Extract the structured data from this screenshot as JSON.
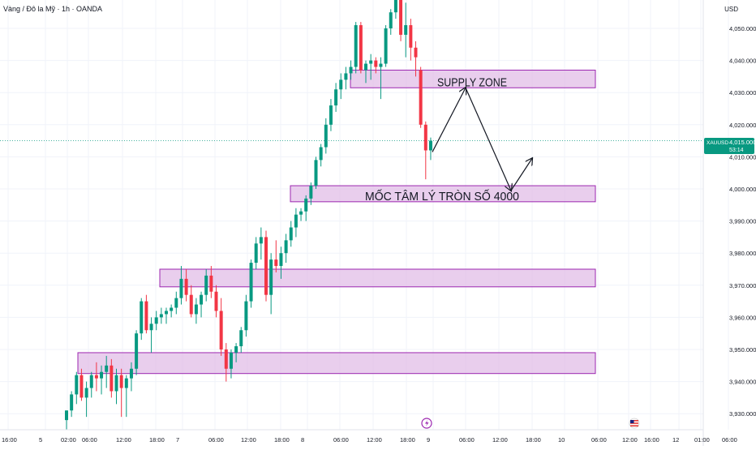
{
  "header": {
    "symbol_title": "Vàng / Đô la Mỹ · 1h · OANDA",
    "currency": "USD"
  },
  "price_tag": {
    "symbol": "XAUUSD",
    "price": "4,015.000",
    "countdown": "53:14",
    "color": "#089981"
  },
  "colors": {
    "up": "#089981",
    "down": "#f23645",
    "zone_fill": "#e1bee7",
    "zone_border": "#9c27b0",
    "grid": "#f0f3fa",
    "axis_text": "#131722"
  },
  "event_icons": [
    {
      "name": "lightning-icon",
      "time_label": "9"
    },
    {
      "name": "us-flag-icon",
      "time_label": "12:00"
    }
  ],
  "chart_data": {
    "type": "candlestick",
    "title": "",
    "xlabel": "",
    "ylabel": "",
    "ylim": [
      3926,
      4062
    ],
    "grid": true,
    "x_tick_labels": [
      "16:00",
      "5",
      "02:00",
      "06:00",
      "12:00",
      "18:00",
      "7",
      "06:00",
      "12:00",
      "18:00",
      "8",
      "06:00",
      "12:00",
      "18:00",
      "9",
      "06:00",
      "12:00",
      "18:00",
      "10",
      "06:00",
      "12:00",
      "16:00",
      "12",
      "01:00",
      "06:00"
    ],
    "y_tick_labels": [
      "4,050.000",
      "4,040.000",
      "4,030.000",
      "4,020.000",
      "4,010.000",
      "4,000.000",
      "3,990.000",
      "3,980.000",
      "3,970.000",
      "3,960.000",
      "3,950.000",
      "3,940.000",
      "3,930.000"
    ],
    "y_ticks": [
      4050,
      4040,
      4030,
      4020,
      4010,
      4000,
      3990,
      3980,
      3970,
      3960,
      3950,
      3940,
      3930
    ],
    "current_price": 4015,
    "zones": [
      {
        "label": "SUPPLY ZONE",
        "top": 4037,
        "bottom": 4031.5
      },
      {
        "label": "MỐC TÂM LÝ TRÒN SỐ 4000",
        "top": 4001,
        "bottom": 3996
      },
      {
        "label": "",
        "top": 3975,
        "bottom": 3969.5
      },
      {
        "label": "",
        "top": 3949,
        "bottom": 3942.5
      }
    ],
    "projection_path": [
      [
        4011.5
      ],
      [
        4031.5
      ],
      [
        3999.5
      ],
      [
        4009.5
      ]
    ],
    "candles": [
      {
        "o": 3928,
        "h": 3931,
        "l": 3925,
        "c": 3931
      },
      {
        "o": 3931,
        "h": 3937,
        "l": 3929,
        "c": 3936
      },
      {
        "o": 3936,
        "h": 3943,
        "l": 3933,
        "c": 3942
      },
      {
        "o": 3942,
        "h": 3944,
        "l": 3934,
        "c": 3935
      },
      {
        "o": 3935,
        "h": 3940,
        "l": 3929,
        "c": 3938
      },
      {
        "o": 3938,
        "h": 3943,
        "l": 3935,
        "c": 3942
      },
      {
        "o": 3942,
        "h": 3946,
        "l": 3937,
        "c": 3941
      },
      {
        "o": 3941,
        "h": 3945,
        "l": 3936,
        "c": 3943
      },
      {
        "o": 3943,
        "h": 3948,
        "l": 3938,
        "c": 3945
      },
      {
        "o": 3945,
        "h": 3947,
        "l": 3935,
        "c": 3937
      },
      {
        "o": 3937,
        "h": 3944,
        "l": 3933,
        "c": 3942
      },
      {
        "o": 3942,
        "h": 3944,
        "l": 3929,
        "c": 3938
      },
      {
        "o": 3938,
        "h": 3942,
        "l": 3929,
        "c": 3941
      },
      {
        "o": 3941,
        "h": 3946,
        "l": 3937,
        "c": 3944
      },
      {
        "o": 3944,
        "h": 3956,
        "l": 3942,
        "c": 3955
      },
      {
        "o": 3955,
        "h": 3966,
        "l": 3953,
        "c": 3965
      },
      {
        "o": 3965,
        "h": 3967,
        "l": 3955,
        "c": 3956
      },
      {
        "o": 3956,
        "h": 3960,
        "l": 3949,
        "c": 3958
      },
      {
        "o": 3958,
        "h": 3962,
        "l": 3956,
        "c": 3960
      },
      {
        "o": 3960,
        "h": 3963,
        "l": 3958,
        "c": 3961
      },
      {
        "o": 3961,
        "h": 3963,
        "l": 3958,
        "c": 3962
      },
      {
        "o": 3962,
        "h": 3964,
        "l": 3960,
        "c": 3963
      },
      {
        "o": 3963,
        "h": 3968,
        "l": 3961,
        "c": 3966
      },
      {
        "o": 3966,
        "h": 3976,
        "l": 3964,
        "c": 3972
      },
      {
        "o": 3972,
        "h": 3975,
        "l": 3965,
        "c": 3967
      },
      {
        "o": 3967,
        "h": 3970,
        "l": 3960,
        "c": 3961
      },
      {
        "o": 3961,
        "h": 3966,
        "l": 3958,
        "c": 3964
      },
      {
        "o": 3964,
        "h": 3968,
        "l": 3960,
        "c": 3967
      },
      {
        "o": 3967,
        "h": 3975,
        "l": 3965,
        "c": 3973
      },
      {
        "o": 3973,
        "h": 3976,
        "l": 3966,
        "c": 3968
      },
      {
        "o": 3968,
        "h": 3970,
        "l": 3960,
        "c": 3962
      },
      {
        "o": 3962,
        "h": 3966,
        "l": 3948,
        "c": 3950
      },
      {
        "o": 3950,
        "h": 3952,
        "l": 3940,
        "c": 3944
      },
      {
        "o": 3944,
        "h": 3950,
        "l": 3941,
        "c": 3949
      },
      {
        "o": 3949,
        "h": 3952,
        "l": 3946,
        "c": 3951
      },
      {
        "o": 3951,
        "h": 3957,
        "l": 3949,
        "c": 3956
      },
      {
        "o": 3956,
        "h": 3967,
        "l": 3954,
        "c": 3965
      },
      {
        "o": 3965,
        "h": 3978,
        "l": 3963,
        "c": 3977
      },
      {
        "o": 3977,
        "h": 3985,
        "l": 3975,
        "c": 3983
      },
      {
        "o": 3983,
        "h": 3988,
        "l": 3978,
        "c": 3985
      },
      {
        "o": 3985,
        "h": 3987,
        "l": 3965,
        "c": 3967
      },
      {
        "o": 3967,
        "h": 3980,
        "l": 3961,
        "c": 3978
      },
      {
        "o": 3978,
        "h": 3984,
        "l": 3974,
        "c": 3976
      },
      {
        "o": 3976,
        "h": 3982,
        "l": 3972,
        "c": 3980
      },
      {
        "o": 3980,
        "h": 3986,
        "l": 3977,
        "c": 3984
      },
      {
        "o": 3984,
        "h": 3990,
        "l": 3982,
        "c": 3988
      },
      {
        "o": 3988,
        "h": 3994,
        "l": 3985,
        "c": 3992
      },
      {
        "o": 3992,
        "h": 3994,
        "l": 3990,
        "c": 3993
      },
      {
        "o": 3993,
        "h": 3998,
        "l": 3990,
        "c": 3997
      },
      {
        "o": 3997,
        "h": 4002,
        "l": 3995,
        "c": 4001
      },
      {
        "o": 4001,
        "h": 4010,
        "l": 4000,
        "c": 4009
      },
      {
        "o": 4009,
        "h": 4014,
        "l": 4007,
        "c": 4013
      },
      {
        "o": 4013,
        "h": 4022,
        "l": 4011,
        "c": 4020
      },
      {
        "o": 4020,
        "h": 4028,
        "l": 4018,
        "c": 4026
      },
      {
        "o": 4026,
        "h": 4033,
        "l": 4024,
        "c": 4031
      },
      {
        "o": 4031,
        "h": 4036,
        "l": 4028,
        "c": 4034
      },
      {
        "o": 4034,
        "h": 4038,
        "l": 4031,
        "c": 4036
      },
      {
        "o": 4036,
        "h": 4040,
        "l": 4034,
        "c": 4038
      },
      {
        "o": 4038,
        "h": 4052,
        "l": 4036,
        "c": 4051
      },
      {
        "o": 4051,
        "h": 4052,
        "l": 4036,
        "c": 4037
      },
      {
        "o": 4037,
        "h": 4040,
        "l": 4033,
        "c": 4039
      },
      {
        "o": 4039,
        "h": 4042,
        "l": 4034,
        "c": 4040
      },
      {
        "o": 4040,
        "h": 4041,
        "l": 4036,
        "c": 4038
      },
      {
        "o": 4038,
        "h": 4041,
        "l": 4028,
        "c": 4039
      },
      {
        "o": 4039,
        "h": 4051,
        "l": 4038,
        "c": 4050
      },
      {
        "o": 4050,
        "h": 4056,
        "l": 4048,
        "c": 4055
      },
      {
        "o": 4055,
        "h": 4062,
        "l": 4053,
        "c": 4060
      },
      {
        "o": 4060,
        "h": 4061,
        "l": 4046,
        "c": 4048
      },
      {
        "o": 4048,
        "h": 4058,
        "l": 4041,
        "c": 4051
      },
      {
        "o": 4051,
        "h": 4053,
        "l": 4040,
        "c": 4044
      },
      {
        "o": 4044,
        "h": 4046,
        "l": 4035,
        "c": 4041
      },
      {
        "o": 4037,
        "h": 4038,
        "l": 4019,
        "c": 4020
      },
      {
        "o": 4020,
        "h": 4021,
        "l": 4003,
        "c": 4012
      },
      {
        "o": 4012,
        "h": 4016,
        "l": 4009,
        "c": 4015
      }
    ]
  }
}
